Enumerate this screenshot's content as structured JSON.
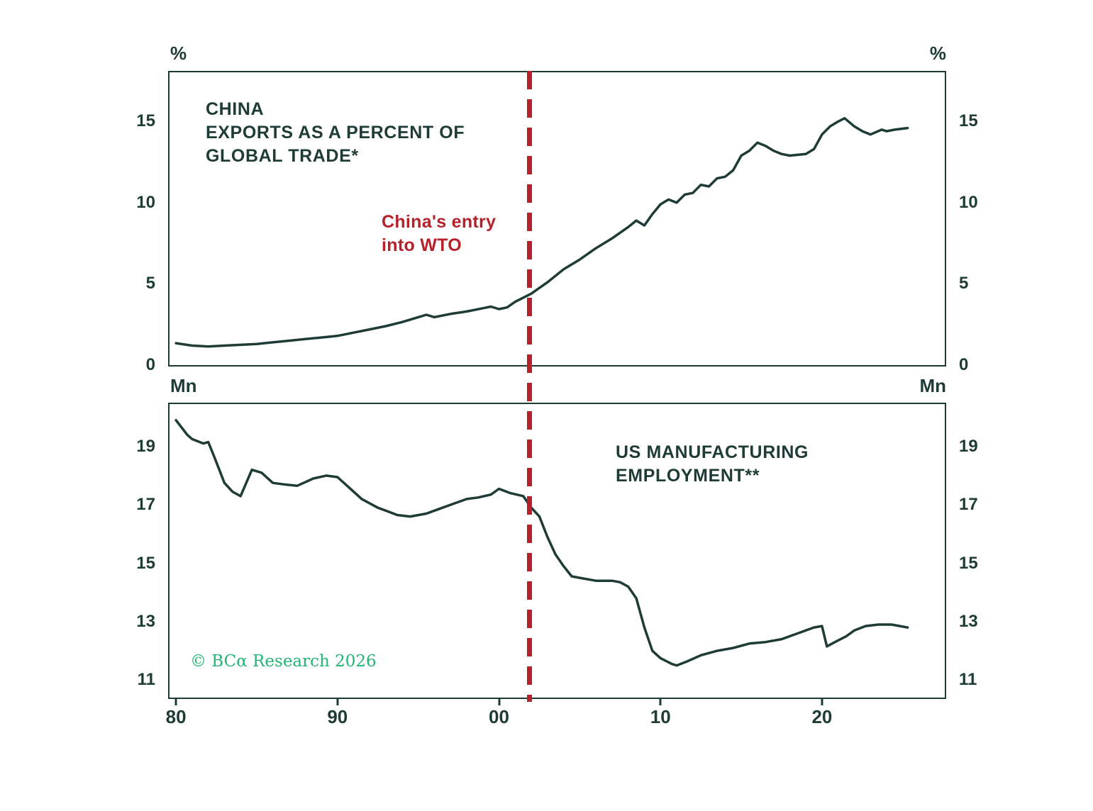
{
  "colors": {
    "ink": "#1e3c35",
    "red": "#b5222b",
    "green": "#22b573",
    "background": "#ffffff"
  },
  "axis_labels": {
    "top_left": "%",
    "top_right": "%",
    "bottom_left": "Mn",
    "bottom_right": "Mn"
  },
  "annotations": {
    "top_title": "CHINA\nEXPORTS AS A PERCENT OF\nGLOBAL TRADE*",
    "wto_label": "China's entry\ninto WTO",
    "bottom_title": "US MANUFACTURING\nEMPLOYMENT**",
    "copyright": "© BCα Research 2026"
  },
  "chart_data": [
    {
      "type": "line",
      "panel": "top",
      "title": "CHINA EXPORTS AS A PERCENT OF GLOBAL TRADE*",
      "unit": "%",
      "grid": false,
      "legend": "none",
      "x_range": [
        1979.6,
        2027.6
      ],
      "y_range": [
        0,
        18.03
      ],
      "y_ticks": [
        0,
        5,
        10,
        15
      ],
      "vline": {
        "year": 2001.9,
        "label": "China's entry into WTO"
      },
      "series": [
        {
          "name": "China exports as a percent of global trade (%)",
          "points": [
            [
              1980,
              1.35
            ],
            [
              1981,
              1.2
            ],
            [
              1982,
              1.15
            ],
            [
              1983,
              1.2
            ],
            [
              1984,
              1.25
            ],
            [
              1985,
              1.3
            ],
            [
              1986,
              1.4
            ],
            [
              1987,
              1.5
            ],
            [
              1988,
              1.6
            ],
            [
              1989,
              1.7
            ],
            [
              1990,
              1.8
            ],
            [
              1991,
              2.0
            ],
            [
              1992,
              2.2
            ],
            [
              1993,
              2.4
            ],
            [
              1994,
              2.65
            ],
            [
              1995,
              2.95
            ],
            [
              1995.5,
              3.1
            ],
            [
              1996,
              2.95
            ],
            [
              1997,
              3.15
            ],
            [
              1998,
              3.3
            ],
            [
              1999,
              3.5
            ],
            [
              1999.5,
              3.6
            ],
            [
              2000,
              3.45
            ],
            [
              2000.5,
              3.55
            ],
            [
              2001,
              3.9
            ],
            [
              2002,
              4.4
            ],
            [
              2003,
              5.1
            ],
            [
              2004,
              5.9
            ],
            [
              2005,
              6.5
            ],
            [
              2006,
              7.2
            ],
            [
              2007,
              7.8
            ],
            [
              2008,
              8.5
            ],
            [
              2008.5,
              8.9
            ],
            [
              2009,
              8.6
            ],
            [
              2009.5,
              9.3
            ],
            [
              2010,
              9.9
            ],
            [
              2010.5,
              10.2
            ],
            [
              2011,
              10.0
            ],
            [
              2011.5,
              10.5
            ],
            [
              2012,
              10.6
            ],
            [
              2012.5,
              11.1
            ],
            [
              2013,
              11.0
            ],
            [
              2013.5,
              11.5
            ],
            [
              2014,
              11.6
            ],
            [
              2014.5,
              12.0
            ],
            [
              2015,
              12.9
            ],
            [
              2015.5,
              13.2
            ],
            [
              2016,
              13.7
            ],
            [
              2016.5,
              13.5
            ],
            [
              2017,
              13.2
            ],
            [
              2017.5,
              13.0
            ],
            [
              2018,
              12.9
            ],
            [
              2019,
              13.0
            ],
            [
              2019.5,
              13.3
            ],
            [
              2020,
              14.2
            ],
            [
              2020.5,
              14.7
            ],
            [
              2021,
              15.0
            ],
            [
              2021.4,
              15.2
            ],
            [
              2022,
              14.7
            ],
            [
              2022.5,
              14.4
            ],
            [
              2023,
              14.2
            ],
            [
              2023.7,
              14.5
            ],
            [
              2024,
              14.4
            ],
            [
              2024.5,
              14.5
            ],
            [
              2025.3,
              14.6
            ]
          ]
        }
      ]
    },
    {
      "type": "line",
      "panel": "bottom",
      "title": "US MANUFACTURING EMPLOYMENT**",
      "unit": "Mn",
      "grid": false,
      "legend": "none",
      "x_range": [
        1979.6,
        2027.6
      ],
      "y_range": [
        10.4,
        20.45
      ],
      "y_ticks": [
        11,
        13,
        15,
        17,
        19
      ],
      "x_ticks": [
        {
          "year": 1980,
          "label": "80"
        },
        {
          "year": 1990,
          "label": "90"
        },
        {
          "year": 2000,
          "label": "00"
        },
        {
          "year": 2010,
          "label": "10"
        },
        {
          "year": 2020,
          "label": "20"
        }
      ],
      "vline": {
        "year": 2001.9,
        "label": "China's entry into WTO"
      },
      "series": [
        {
          "name": "US manufacturing employment (millions)",
          "points": [
            [
              1980,
              19.9
            ],
            [
              1980.7,
              19.4
            ],
            [
              1981,
              19.25
            ],
            [
              1981.7,
              19.1
            ],
            [
              1982,
              19.15
            ],
            [
              1982.4,
              18.6
            ],
            [
              1983,
              17.75
            ],
            [
              1983.5,
              17.45
            ],
            [
              1984,
              17.3
            ],
            [
              1984.7,
              18.2
            ],
            [
              1985.3,
              18.1
            ],
            [
              1986,
              17.75
            ],
            [
              1986.7,
              17.7
            ],
            [
              1987.5,
              17.65
            ],
            [
              1988.5,
              17.9
            ],
            [
              1989.3,
              18.0
            ],
            [
              1990,
              17.95
            ],
            [
              1990.7,
              17.6
            ],
            [
              1991.5,
              17.2
            ],
            [
              1992.5,
              16.9
            ],
            [
              1993,
              16.8
            ],
            [
              1993.7,
              16.65
            ],
            [
              1994.5,
              16.6
            ],
            [
              1995.5,
              16.7
            ],
            [
              1996.5,
              16.9
            ],
            [
              1997.5,
              17.1
            ],
            [
              1998,
              17.2
            ],
            [
              1998.7,
              17.25
            ],
            [
              1999.5,
              17.35
            ],
            [
              2000,
              17.55
            ],
            [
              2000.7,
              17.4
            ],
            [
              2001.5,
              17.3
            ],
            [
              2002,
              16.9
            ],
            [
              2002.5,
              16.6
            ],
            [
              2003,
              15.9
            ],
            [
              2003.5,
              15.3
            ],
            [
              2004,
              14.9
            ],
            [
              2004.5,
              14.55
            ],
            [
              2005,
              14.5
            ],
            [
              2006,
              14.4
            ],
            [
              2007,
              14.4
            ],
            [
              2007.5,
              14.35
            ],
            [
              2008,
              14.2
            ],
            [
              2008.5,
              13.8
            ],
            [
              2009,
              12.8
            ],
            [
              2009.5,
              12.0
            ],
            [
              2010,
              11.75
            ],
            [
              2010.7,
              11.55
            ],
            [
              2011,
              11.5
            ],
            [
              2011.7,
              11.65
            ],
            [
              2012.5,
              11.85
            ],
            [
              2013.5,
              12.0
            ],
            [
              2014.5,
              12.1
            ],
            [
              2015.5,
              12.25
            ],
            [
              2016.5,
              12.3
            ],
            [
              2017.5,
              12.4
            ],
            [
              2018.5,
              12.6
            ],
            [
              2019.5,
              12.8
            ],
            [
              2020,
              12.85
            ],
            [
              2020.3,
              12.15
            ],
            [
              2020.8,
              12.3
            ],
            [
              2021.5,
              12.5
            ],
            [
              2022,
              12.7
            ],
            [
              2022.7,
              12.85
            ],
            [
              2023.5,
              12.9
            ],
            [
              2024.3,
              12.9
            ],
            [
              2025.3,
              12.8
            ]
          ]
        }
      ]
    }
  ]
}
